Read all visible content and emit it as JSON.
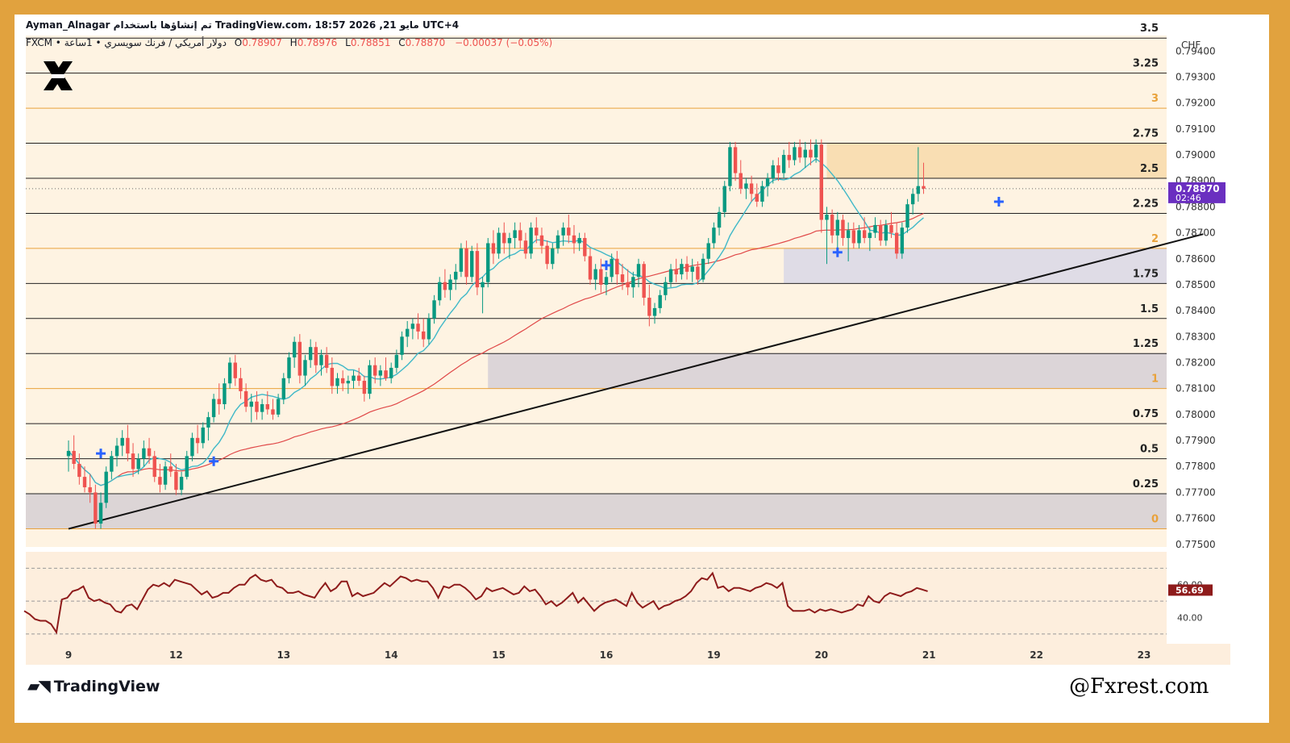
{
  "header": {
    "line1": "Ayman_Alnagar تم إنشاؤها باستخدام TradingView.com، 18:57 2026 ,21 مايو UTC+4",
    "symbol": "FXCM • دولار أمريكي / فرنك سويسري • 1ساعة",
    "o_label": "O",
    "o_value": "0.78907",
    "h_label": "H",
    "h_value": "0.78976",
    "l_label": "L",
    "l_value": "0.78851",
    "c_label": "C",
    "c_value": "0.78870",
    "change": "−0.00037 (−0.05%)"
  },
  "currency": "CHF",
  "price_tag": {
    "value": "0.78870",
    "countdown": "02:46"
  },
  "rsi_tag": "56.69",
  "branding": {
    "tv": "TradingView",
    "watermark": "@Fxrest.com"
  },
  "colors": {
    "frame": "#e1a23e",
    "bull": "#089981",
    "bear": "#ef5350",
    "ma_fast": "#3fb8c8",
    "ma_slow": "#e04848",
    "rsi": "#8e1b1b",
    "price_tag": "#6a2fc0",
    "fib_orange": "#e9a23b",
    "cross": "#2962ff"
  },
  "chart_data": {
    "type": "candlestick",
    "title": "",
    "instrument": "USD/CHF",
    "timeframe": "1h",
    "ylim": [
      0.7749,
      0.7946
    ],
    "y_ticks": [
      0.775,
      0.776,
      0.777,
      0.778,
      0.779,
      0.78,
      0.781,
      0.782,
      0.783,
      0.784,
      0.785,
      0.786,
      0.787,
      0.788,
      0.789,
      0.79,
      0.791,
      0.792,
      0.793,
      0.794
    ],
    "y_tick_labels": [
      "0.77500",
      "0.77600",
      "0.77700",
      "0.77800",
      "0.77900",
      "0.78000",
      "0.78100",
      "0.78200",
      "0.78300",
      "0.78400",
      "0.78500",
      "0.78600",
      "0.78700",
      "0.78800",
      "0.78900",
      "0.79000",
      "0.79100",
      "0.79200",
      "0.79300",
      "0.79400"
    ],
    "x_ticks": [
      {
        "label": "9",
        "i": 0
      },
      {
        "label": "12",
        "i": 20
      },
      {
        "label": "13",
        "i": 40
      },
      {
        "label": "14",
        "i": 60
      },
      {
        "label": "15",
        "i": 80
      },
      {
        "label": "16",
        "i": 100
      },
      {
        "label": "19",
        "i": 120
      },
      {
        "label": "20",
        "i": 140
      },
      {
        "label": "21",
        "i": 160
      },
      {
        "label": "22",
        "i": 180
      },
      {
        "label": "23",
        "i": 200
      }
    ],
    "fib_levels": [
      {
        "label": "0",
        "price": 0.7756,
        "color": "orange"
      },
      {
        "label": "0.25",
        "price": 0.77695,
        "color": "black"
      },
      {
        "label": "0.5",
        "price": 0.7783,
        "color": "black"
      },
      {
        "label": "0.75",
        "price": 0.77965,
        "color": "black"
      },
      {
        "label": "1",
        "price": 0.781,
        "color": "orange"
      },
      {
        "label": "1.25",
        "price": 0.78235,
        "color": "black"
      },
      {
        "label": "1.5",
        "price": 0.7837,
        "color": "black"
      },
      {
        "label": "1.75",
        "price": 0.78505,
        "color": "black"
      },
      {
        "label": "2",
        "price": 0.7864,
        "color": "orange"
      },
      {
        "label": "2.25",
        "price": 0.78775,
        "color": "black"
      },
      {
        "label": "2.5",
        "price": 0.7891,
        "color": "black"
      },
      {
        "label": "2.75",
        "price": 0.79045,
        "color": "black"
      },
      {
        "label": "3",
        "price": 0.7918,
        "color": "orange"
      },
      {
        "label": "3.25",
        "price": 0.79315,
        "color": "black"
      },
      {
        "label": "3.5",
        "price": 0.7945,
        "color": "black"
      }
    ],
    "zones": [
      {
        "from_i": -8,
        "to_i": 211,
        "low": 0.7756,
        "high": 0.77695,
        "color": "#d6cfd3"
      },
      {
        "from_i": 78,
        "to_i": 211,
        "low": 0.781,
        "high": 0.78235,
        "color": "#d6cfd6"
      },
      {
        "from_i": 133,
        "to_i": 211,
        "low": 0.78505,
        "high": 0.7864,
        "color": "#d9d7e6"
      },
      {
        "from_i": 141,
        "to_i": 211,
        "low": 0.7891,
        "high": 0.79045,
        "color": "#f8d9aa"
      }
    ],
    "trendline": {
      "x1": 0,
      "y1": 0.7756,
      "x2": 211,
      "y2": 0.78695
    },
    "candles": [
      [
        0.7784,
        0.779,
        0.7778,
        0.7786
      ],
      [
        0.7786,
        0.7792,
        0.7779,
        0.7781
      ],
      [
        0.7781,
        0.7785,
        0.7773,
        0.7776
      ],
      [
        0.7776,
        0.778,
        0.777,
        0.7772
      ],
      [
        0.7772,
        0.7777,
        0.7766,
        0.777
      ],
      [
        0.777,
        0.7773,
        0.7756,
        0.7758
      ],
      [
        0.7758,
        0.777,
        0.7756,
        0.7766
      ],
      [
        0.7766,
        0.778,
        0.7764,
        0.7778
      ],
      [
        0.7778,
        0.7786,
        0.7775,
        0.7784
      ],
      [
        0.7784,
        0.7791,
        0.778,
        0.7788
      ],
      [
        0.7788,
        0.7794,
        0.7784,
        0.7791
      ],
      [
        0.7791,
        0.7796,
        0.7782,
        0.7785
      ],
      [
        0.7785,
        0.7789,
        0.7776,
        0.7779
      ],
      [
        0.7779,
        0.7785,
        0.7777,
        0.7783
      ],
      [
        0.7783,
        0.779,
        0.778,
        0.7787
      ],
      [
        0.7787,
        0.7791,
        0.7781,
        0.7784
      ],
      [
        0.7784,
        0.7786,
        0.7774,
        0.7776
      ],
      [
        0.7776,
        0.7781,
        0.777,
        0.7773
      ],
      [
        0.7773,
        0.7782,
        0.7771,
        0.778
      ],
      [
        0.778,
        0.7785,
        0.7776,
        0.7778
      ],
      [
        0.7778,
        0.7781,
        0.7769,
        0.7771
      ],
      [
        0.7771,
        0.7778,
        0.7769,
        0.7776
      ],
      [
        0.7776,
        0.7786,
        0.7775,
        0.7784
      ],
      [
        0.7784,
        0.7793,
        0.7782,
        0.7791
      ],
      [
        0.7791,
        0.7796,
        0.7785,
        0.7789
      ],
      [
        0.7789,
        0.7797,
        0.7787,
        0.7795
      ],
      [
        0.7795,
        0.7801,
        0.779,
        0.7799
      ],
      [
        0.7799,
        0.7808,
        0.7797,
        0.7806
      ],
      [
        0.7806,
        0.7812,
        0.78,
        0.7804
      ],
      [
        0.7804,
        0.7814,
        0.7802,
        0.7812
      ],
      [
        0.7812,
        0.7822,
        0.781,
        0.782
      ],
      [
        0.782,
        0.7823,
        0.7811,
        0.7814
      ],
      [
        0.7814,
        0.7818,
        0.7806,
        0.7809
      ],
      [
        0.7809,
        0.7812,
        0.7801,
        0.7803
      ],
      [
        0.7803,
        0.7808,
        0.7797,
        0.7805
      ],
      [
        0.7805,
        0.7809,
        0.7798,
        0.7801
      ],
      [
        0.7801,
        0.7806,
        0.7798,
        0.7804
      ],
      [
        0.7804,
        0.7809,
        0.78,
        0.7802
      ],
      [
        0.7802,
        0.7806,
        0.7798,
        0.78
      ],
      [
        0.78,
        0.7808,
        0.7799,
        0.7806
      ],
      [
        0.7806,
        0.7816,
        0.7804,
        0.7814
      ],
      [
        0.7814,
        0.7824,
        0.7812,
        0.7822
      ],
      [
        0.7822,
        0.783,
        0.7818,
        0.7828
      ],
      [
        0.7828,
        0.7831,
        0.7812,
        0.7815
      ],
      [
        0.7815,
        0.7823,
        0.7811,
        0.7821
      ],
      [
        0.7821,
        0.7829,
        0.7818,
        0.7826
      ],
      [
        0.7826,
        0.7828,
        0.7816,
        0.7819
      ],
      [
        0.7819,
        0.7825,
        0.7815,
        0.7823
      ],
      [
        0.7823,
        0.7826,
        0.7816,
        0.7818
      ],
      [
        0.7818,
        0.7822,
        0.7808,
        0.7811
      ],
      [
        0.7811,
        0.7816,
        0.7808,
        0.7814
      ],
      [
        0.7814,
        0.7817,
        0.7809,
        0.7812
      ],
      [
        0.7812,
        0.7815,
        0.7808,
        0.7813
      ],
      [
        0.7813,
        0.7817,
        0.781,
        0.7815
      ],
      [
        0.7815,
        0.7818,
        0.7811,
        0.7813
      ],
      [
        0.7813,
        0.7815,
        0.7805,
        0.7808
      ],
      [
        0.7808,
        0.7821,
        0.7806,
        0.7819
      ],
      [
        0.7819,
        0.7822,
        0.7812,
        0.7815
      ],
      [
        0.7815,
        0.7819,
        0.7811,
        0.7817
      ],
      [
        0.7817,
        0.7822,
        0.7813,
        0.7814
      ],
      [
        0.7814,
        0.782,
        0.7812,
        0.7818
      ],
      [
        0.7818,
        0.7825,
        0.7816,
        0.7823
      ],
      [
        0.7823,
        0.7832,
        0.7821,
        0.783
      ],
      [
        0.783,
        0.7836,
        0.7826,
        0.7833
      ],
      [
        0.7833,
        0.7837,
        0.7829,
        0.7835
      ],
      [
        0.7835,
        0.7839,
        0.7829,
        0.7832
      ],
      [
        0.7832,
        0.7837,
        0.7826,
        0.7829
      ],
      [
        0.7829,
        0.7839,
        0.7827,
        0.7837
      ],
      [
        0.7837,
        0.7846,
        0.7835,
        0.7844
      ],
      [
        0.7844,
        0.7853,
        0.7842,
        0.7851
      ],
      [
        0.7851,
        0.7856,
        0.7845,
        0.7848
      ],
      [
        0.7848,
        0.7854,
        0.7844,
        0.7852
      ],
      [
        0.7852,
        0.7858,
        0.7848,
        0.7855
      ],
      [
        0.7855,
        0.7866,
        0.7853,
        0.7864
      ],
      [
        0.7864,
        0.7867,
        0.785,
        0.7853
      ],
      [
        0.7853,
        0.7865,
        0.7851,
        0.7863
      ],
      [
        0.7863,
        0.7866,
        0.7846,
        0.7849
      ],
      [
        0.7849,
        0.7853,
        0.7839,
        0.7851
      ],
      [
        0.7851,
        0.7868,
        0.7849,
        0.7866
      ],
      [
        0.7866,
        0.7871,
        0.7858,
        0.7862
      ],
      [
        0.7862,
        0.7872,
        0.786,
        0.787
      ],
      [
        0.787,
        0.7874,
        0.7862,
        0.7866
      ],
      [
        0.7866,
        0.787,
        0.786,
        0.7868
      ],
      [
        0.7868,
        0.7874,
        0.7864,
        0.7871
      ],
      [
        0.7871,
        0.7874,
        0.7864,
        0.7867
      ],
      [
        0.7867,
        0.787,
        0.786,
        0.7862
      ],
      [
        0.7862,
        0.7874,
        0.786,
        0.7872
      ],
      [
        0.7872,
        0.7876,
        0.7866,
        0.7869
      ],
      [
        0.7869,
        0.7872,
        0.7862,
        0.7865
      ],
      [
        0.7865,
        0.7867,
        0.7856,
        0.7858
      ],
      [
        0.7858,
        0.7866,
        0.7856,
        0.7864
      ],
      [
        0.7864,
        0.7871,
        0.7862,
        0.7869
      ],
      [
        0.7869,
        0.7874,
        0.7865,
        0.7872
      ],
      [
        0.7872,
        0.7877,
        0.7866,
        0.7869
      ],
      [
        0.7869,
        0.7873,
        0.7862,
        0.7866
      ],
      [
        0.7866,
        0.787,
        0.7863,
        0.7868
      ],
      [
        0.7868,
        0.787,
        0.7859,
        0.7861
      ],
      [
        0.7861,
        0.7864,
        0.785,
        0.7852
      ],
      [
        0.7852,
        0.7858,
        0.7848,
        0.7856
      ],
      [
        0.7856,
        0.786,
        0.7847,
        0.785
      ],
      [
        0.785,
        0.7855,
        0.7846,
        0.7853
      ],
      [
        0.7853,
        0.7862,
        0.7851,
        0.786
      ],
      [
        0.786,
        0.7863,
        0.785,
        0.7854
      ],
      [
        0.7854,
        0.7858,
        0.7848,
        0.7851
      ],
      [
        0.7851,
        0.7856,
        0.7846,
        0.7849
      ],
      [
        0.7849,
        0.7855,
        0.7845,
        0.7853
      ],
      [
        0.7853,
        0.786,
        0.7849,
        0.7858
      ],
      [
        0.7858,
        0.7859,
        0.7842,
        0.7845
      ],
      [
        0.7845,
        0.785,
        0.7834,
        0.7838
      ],
      [
        0.7838,
        0.7843,
        0.7835,
        0.7841
      ],
      [
        0.7841,
        0.7848,
        0.7839,
        0.7846
      ],
      [
        0.7846,
        0.7853,
        0.7844,
        0.7851
      ],
      [
        0.7851,
        0.7858,
        0.7849,
        0.7856
      ],
      [
        0.7856,
        0.786,
        0.7851,
        0.7854
      ],
      [
        0.7854,
        0.786,
        0.7852,
        0.7858
      ],
      [
        0.7858,
        0.7861,
        0.7852,
        0.7855
      ],
      [
        0.7855,
        0.786,
        0.7851,
        0.7857
      ],
      [
        0.7857,
        0.7859,
        0.785,
        0.7852
      ],
      [
        0.7852,
        0.7862,
        0.7851,
        0.786
      ],
      [
        0.786,
        0.7868,
        0.7858,
        0.7866
      ],
      [
        0.7866,
        0.7874,
        0.7864,
        0.7872
      ],
      [
        0.7872,
        0.788,
        0.7869,
        0.7878
      ],
      [
        0.7878,
        0.789,
        0.7876,
        0.7888
      ],
      [
        0.7888,
        0.7905,
        0.7886,
        0.7903
      ],
      [
        0.7903,
        0.7905,
        0.789,
        0.7893
      ],
      [
        0.7893,
        0.7898,
        0.7885,
        0.7887
      ],
      [
        0.7887,
        0.7891,
        0.7883,
        0.7889
      ],
      [
        0.7889,
        0.7892,
        0.7882,
        0.7885
      ],
      [
        0.7885,
        0.7889,
        0.788,
        0.7882
      ],
      [
        0.7882,
        0.789,
        0.788,
        0.7888
      ],
      [
        0.7888,
        0.7893,
        0.7884,
        0.7891
      ],
      [
        0.7891,
        0.7898,
        0.7889,
        0.7896
      ],
      [
        0.7896,
        0.7899,
        0.789,
        0.7893
      ],
      [
        0.7893,
        0.7902,
        0.7891,
        0.79
      ],
      [
        0.79,
        0.7905,
        0.7895,
        0.7898
      ],
      [
        0.7898,
        0.7905,
        0.7896,
        0.7903
      ],
      [
        0.7903,
        0.7906,
        0.7897,
        0.7899
      ],
      [
        0.7899,
        0.7905,
        0.7895,
        0.7902
      ],
      [
        0.7902,
        0.7906,
        0.7896,
        0.7899
      ],
      [
        0.7899,
        0.7906,
        0.7897,
        0.7904
      ],
      [
        0.7904,
        0.7906,
        0.787,
        0.7875
      ],
      [
        0.7875,
        0.788,
        0.7858,
        0.7877
      ],
      [
        0.7877,
        0.7879,
        0.7866,
        0.7869
      ],
      [
        0.7869,
        0.7878,
        0.7864,
        0.7875
      ],
      [
        0.7875,
        0.7877,
        0.7865,
        0.7868
      ],
      [
        0.7868,
        0.7874,
        0.7859,
        0.7871
      ],
      [
        0.7871,
        0.7874,
        0.7864,
        0.7866
      ],
      [
        0.7866,
        0.7873,
        0.7864,
        0.7871
      ],
      [
        0.7871,
        0.7876,
        0.7866,
        0.7868
      ],
      [
        0.7868,
        0.7872,
        0.7863,
        0.787
      ],
      [
        0.787,
        0.7876,
        0.7868,
        0.7873
      ],
      [
        0.7873,
        0.7875,
        0.7865,
        0.7867
      ],
      [
        0.7867,
        0.7875,
        0.7865,
        0.7873
      ],
      [
        0.7873,
        0.7878,
        0.7868,
        0.787
      ],
      [
        0.787,
        0.7874,
        0.786,
        0.7862
      ],
      [
        0.7862,
        0.7874,
        0.786,
        0.7872
      ],
      [
        0.7872,
        0.7883,
        0.787,
        0.7881
      ],
      [
        0.7881,
        0.7887,
        0.7877,
        0.7885
      ],
      [
        0.7885,
        0.7903,
        0.7882,
        0.7888
      ],
      [
        0.7888,
        0.7897,
        0.7885,
        0.7887
      ]
    ],
    "signals": [
      {
        "i": 6,
        "price": 0.7785
      },
      {
        "i": 27,
        "price": 0.7782
      },
      {
        "i": 100,
        "price": 0.78575
      },
      {
        "i": 143,
        "price": 0.78625
      },
      {
        "i": 173,
        "price": 0.7882
      }
    ],
    "rsi": {
      "levels": [
        70,
        50,
        30
      ],
      "level_labels": [
        "60.00",
        "40.00"
      ],
      "last": 56.69,
      "values": [
        44,
        42,
        39,
        38,
        38,
        36,
        31,
        51,
        52,
        56,
        57,
        59,
        52,
        50,
        51,
        49,
        48,
        44,
        43,
        47,
        48,
        45,
        51,
        57,
        60,
        59,
        61,
        59,
        63,
        62,
        61,
        60,
        57,
        54,
        56,
        52,
        53,
        55,
        55,
        58,
        60,
        60,
        64,
        66,
        63,
        62,
        63,
        59,
        58,
        55,
        55,
        56,
        54,
        53,
        52,
        57,
        61,
        56,
        58,
        62,
        62,
        53,
        55,
        53,
        54,
        55,
        58,
        61,
        59,
        62,
        65,
        64,
        62,
        63,
        62,
        62,
        58,
        52,
        59,
        58,
        60,
        60,
        58,
        55,
        51,
        53,
        58,
        56,
        57,
        58,
        56,
        54,
        55,
        59,
        56,
        57,
        53,
        48,
        50,
        47,
        49,
        52,
        55,
        49,
        52,
        48,
        44,
        47,
        49,
        50,
        51,
        49,
        47,
        55,
        49,
        46,
        48,
        50,
        45,
        47,
        48,
        50,
        51,
        53,
        56,
        61,
        64,
        63,
        67,
        58,
        59,
        56,
        58,
        58,
        57,
        56,
        58,
        59,
        61,
        60,
        58,
        61,
        47,
        44,
        44,
        44,
        45,
        43,
        45,
        44,
        45,
        44,
        43,
        44,
        45,
        48,
        47,
        53,
        50,
        49,
        53,
        55,
        54,
        53,
        55,
        56,
        58,
        57,
        56
      ]
    }
  }
}
